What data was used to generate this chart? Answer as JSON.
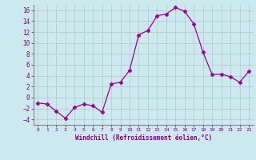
{
  "x": [
    0,
    1,
    2,
    3,
    4,
    5,
    6,
    7,
    8,
    9,
    10,
    11,
    12,
    13,
    14,
    15,
    16,
    17,
    18,
    19,
    20,
    21,
    22,
    23
  ],
  "y": [
    -1.0,
    -1.2,
    -2.5,
    -3.8,
    -1.8,
    -1.2,
    -1.5,
    -2.7,
    2.5,
    2.8,
    5.0,
    11.5,
    12.3,
    15.0,
    15.3,
    16.5,
    15.8,
    13.5,
    8.3,
    4.2,
    4.3,
    3.8,
    2.8,
    4.8
  ],
  "line_color": "#990099",
  "marker": "D",
  "marker_size": 2.5,
  "bg_color": "#cce9f0",
  "grid_color": "#bbcccc",
  "xlabel": "Windchill (Refroidissement éolien,°C)",
  "xlabel_color": "#800080",
  "tick_color": "#800080",
  "ylim": [
    -5,
    17
  ],
  "xlim": [
    -0.5,
    23.5
  ],
  "yticks": [
    -4,
    -2,
    0,
    2,
    4,
    6,
    8,
    10,
    12,
    14,
    16
  ],
  "xticks": [
    0,
    1,
    2,
    3,
    4,
    5,
    6,
    7,
    8,
    9,
    10,
    11,
    12,
    13,
    14,
    15,
    16,
    17,
    18,
    19,
    20,
    21,
    22,
    23
  ]
}
